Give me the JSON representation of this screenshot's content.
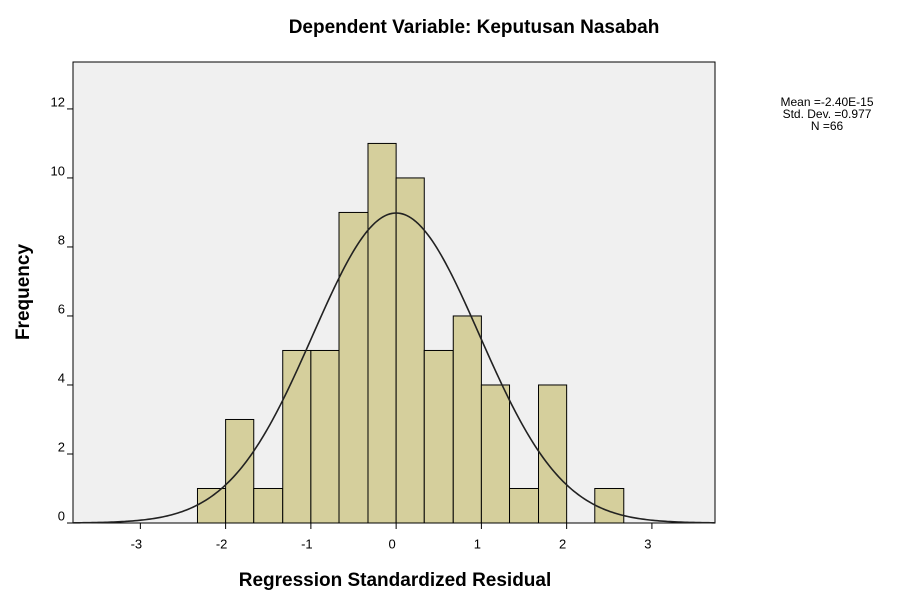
{
  "chart_data": {
    "type": "histogram",
    "title": "Dependent Variable: Keputusan Nasabah",
    "xlabel": "Regression Standardized Residual",
    "ylabel": "Frequency",
    "bins": [
      -2.33,
      -2,
      -1.67,
      -1.33,
      -1,
      -0.67,
      -0.33,
      0,
      0.33,
      0.67,
      1,
      1.33,
      1.67,
      2,
      2.33,
      2.67
    ],
    "counts": [
      1,
      3,
      1,
      5,
      5,
      9,
      11,
      10,
      5,
      6,
      4,
      1,
      4,
      0,
      1
    ],
    "color": "#d5cf9c",
    "xlim": [
      -3.79,
      3.74
    ],
    "xticks": [
      -3,
      -2,
      -1,
      0,
      1,
      2,
      3
    ],
    "ylim": [
      0,
      13.36
    ],
    "yticks": [
      0,
      2,
      4,
      6,
      8,
      10,
      12
    ],
    "stats": [
      {
        "value": -2.4e-15,
        "label": "Mean =-2.40E-15"
      },
      {
        "value": 0.977,
        "label": "Std. Dev. =0.977"
      },
      {
        "value": 66,
        "label": "N =66"
      }
    ]
  }
}
